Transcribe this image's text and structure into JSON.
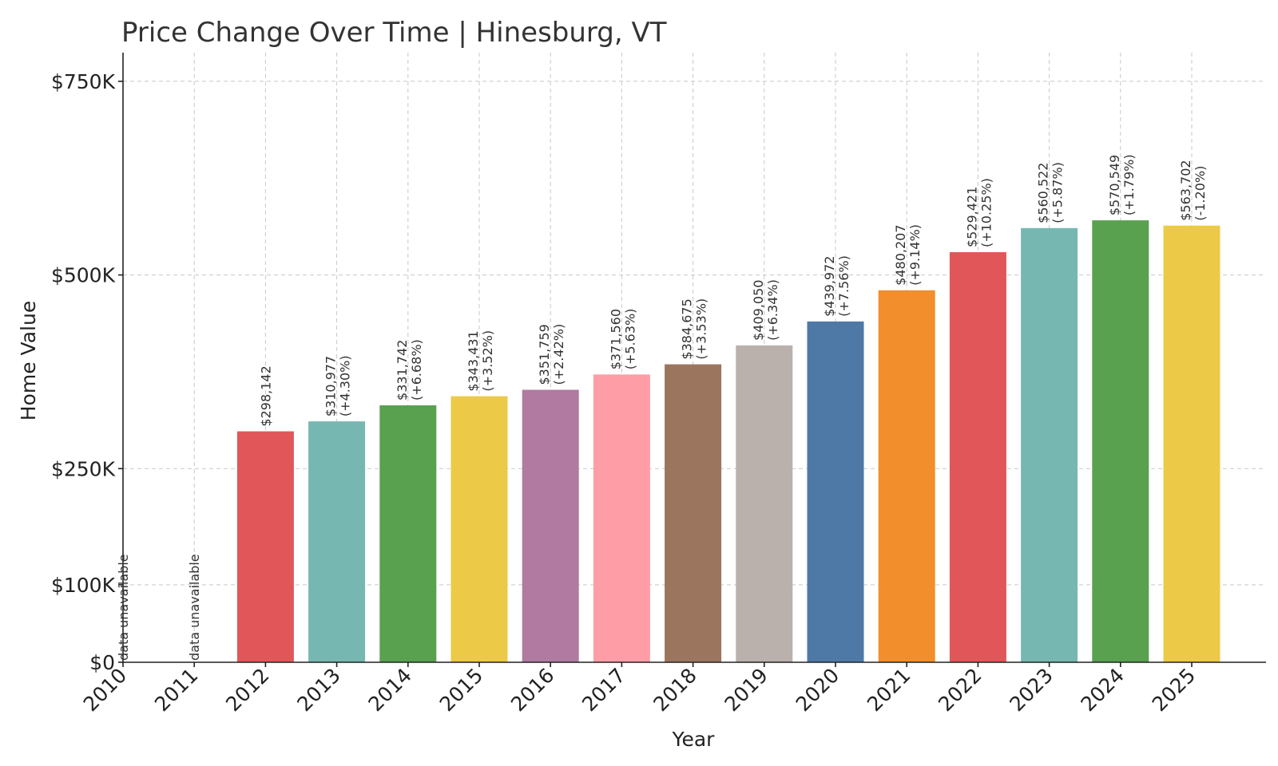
{
  "chart_data": {
    "type": "bar",
    "title": "Price Change Over Time | Hinesburg, VT",
    "xlabel": "Year",
    "ylabel": "Home Value",
    "categories": [
      "2010",
      "2011",
      "2012",
      "2013",
      "2014",
      "2015",
      "2016",
      "2017",
      "2018",
      "2019",
      "2020",
      "2021",
      "2022",
      "2023",
      "2024",
      "2025"
    ],
    "values": [
      null,
      null,
      298142,
      310977,
      331742,
      343431,
      351759,
      371560,
      384675,
      409050,
      439972,
      480207,
      529421,
      560522,
      570549,
      563702
    ],
    "value_labels": [
      "",
      "",
      "$298,142",
      "$310,977",
      "$331,742",
      "$343,431",
      "$351,759",
      "$371,560",
      "$384,675",
      "$409,050",
      "$439,972",
      "$480,207",
      "$529,421",
      "$560,522",
      "$570,549",
      "$563,702"
    ],
    "change_labels": [
      "",
      "",
      "",
      "(+4.30%)",
      "(+6.68%)",
      "(+3.52%)",
      "(+2.42%)",
      "(+5.63%)",
      "(+3.53%)",
      "(+6.34%)",
      "(+7.56%)",
      "(+9.14%)",
      "(+10.25%)",
      "(+5.87%)",
      "(+1.79%)",
      "(-1.20%)"
    ],
    "missing_label": "data unavailable",
    "colors": [
      "#e15759",
      "#76b7b2",
      "#59a14f",
      "#edc948",
      "#b07aa1",
      "#ff9da7",
      "#9c755f",
      "#bab0ac",
      "#4e79a7",
      "#f28e2b",
      "#e15759",
      "#76b7b2",
      "#59a14f",
      "#edc948"
    ],
    "yticks": [
      0,
      100000,
      250000,
      500000,
      750000
    ],
    "ytick_labels": [
      "$0",
      "$100K",
      "$250K",
      "$500K",
      "$750K"
    ],
    "ylim": [
      0,
      787000
    ],
    "grid": true
  }
}
